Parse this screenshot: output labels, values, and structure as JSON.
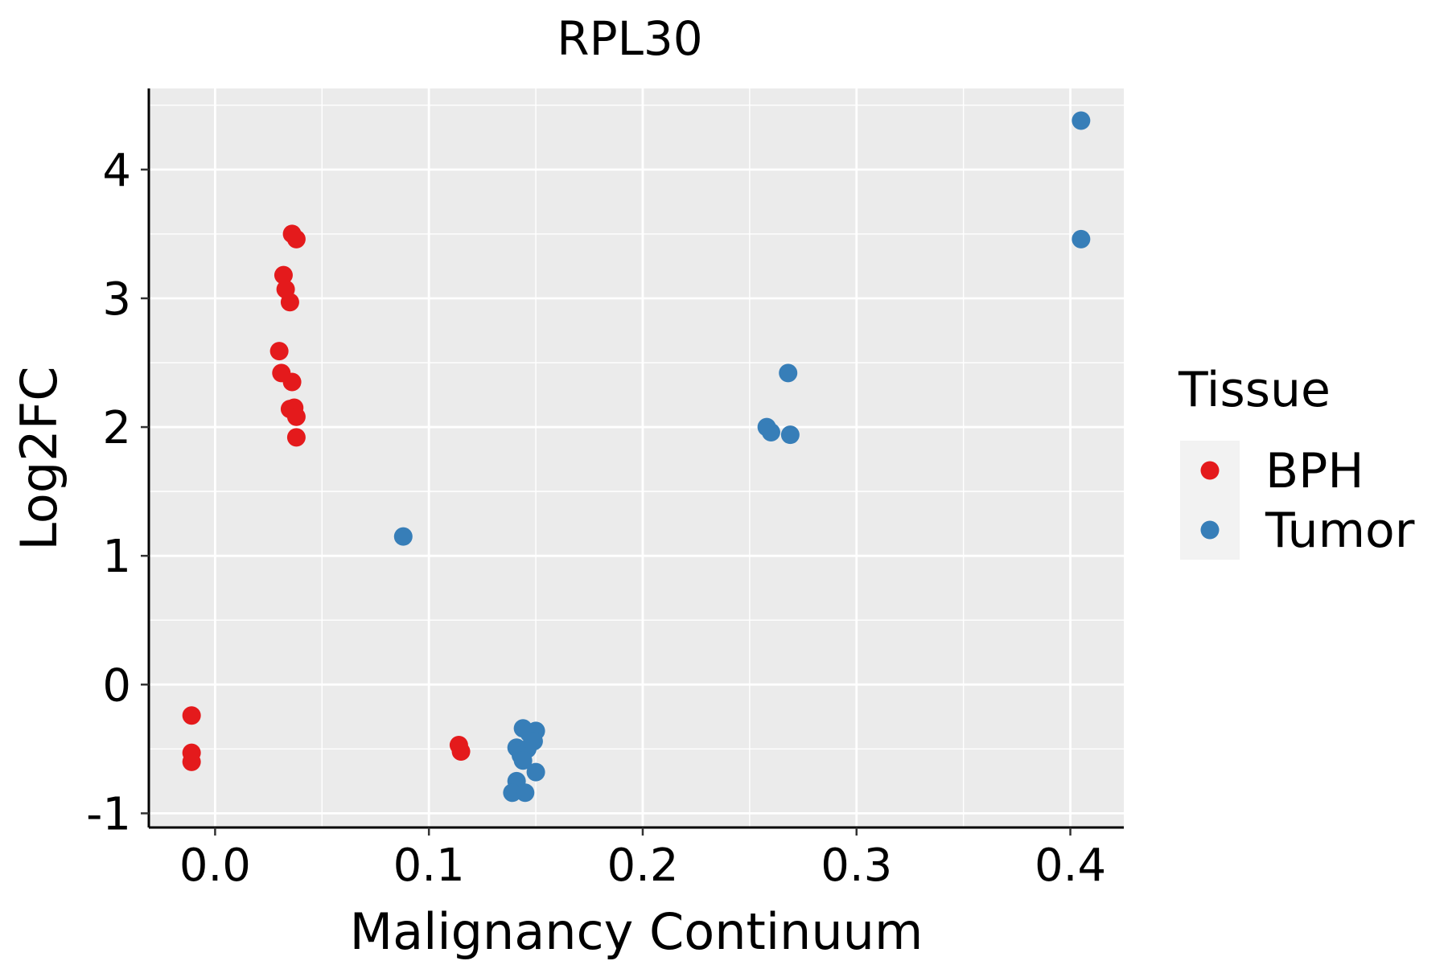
{
  "chart_data": {
    "type": "scatter",
    "title": "RPL30",
    "xlabel": "Malignancy Continuum",
    "ylabel": "Log2FC",
    "xlim": [
      -0.031,
      0.425
    ],
    "ylim": [
      -1.11,
      4.63
    ],
    "x_ticks": [
      0.0,
      0.1,
      0.2,
      0.3,
      0.4
    ],
    "x_tick_labels": [
      "0.0",
      "0.1",
      "0.2",
      "0.3",
      "0.4"
    ],
    "y_ticks": [
      -1,
      0,
      1,
      2,
      3,
      4
    ],
    "y_tick_labels": [
      "-1",
      "0",
      "1",
      "2",
      "3",
      "4"
    ],
    "grid": true,
    "legend": {
      "title": "Tissue",
      "placement": "right",
      "entries": [
        "BPH",
        "Tumor"
      ]
    },
    "series": [
      {
        "name": "BPH",
        "color": "#e41a1c",
        "points": [
          {
            "x": -0.011,
            "y": -0.24
          },
          {
            "x": -0.011,
            "y": -0.53
          },
          {
            "x": -0.011,
            "y": -0.6
          },
          {
            "x": 0.036,
            "y": 3.5
          },
          {
            "x": 0.038,
            "y": 3.46
          },
          {
            "x": 0.032,
            "y": 3.18
          },
          {
            "x": 0.033,
            "y": 3.07
          },
          {
            "x": 0.035,
            "y": 2.97
          },
          {
            "x": 0.03,
            "y": 2.59
          },
          {
            "x": 0.031,
            "y": 2.42
          },
          {
            "x": 0.036,
            "y": 2.35
          },
          {
            "x": 0.035,
            "y": 2.14
          },
          {
            "x": 0.037,
            "y": 2.15
          },
          {
            "x": 0.038,
            "y": 2.08
          },
          {
            "x": 0.038,
            "y": 1.92
          },
          {
            "x": 0.114,
            "y": -0.47
          },
          {
            "x": 0.115,
            "y": -0.52
          }
        ]
      },
      {
        "name": "Tumor",
        "color": "#377eb8",
        "points": [
          {
            "x": 0.405,
            "y": 4.38
          },
          {
            "x": 0.405,
            "y": 3.46
          },
          {
            "x": 0.268,
            "y": 2.42
          },
          {
            "x": 0.258,
            "y": 2.0
          },
          {
            "x": 0.26,
            "y": 1.96
          },
          {
            "x": 0.269,
            "y": 1.94
          },
          {
            "x": 0.088,
            "y": 1.15
          },
          {
            "x": 0.144,
            "y": -0.34
          },
          {
            "x": 0.15,
            "y": -0.36
          },
          {
            "x": 0.147,
            "y": -0.38
          },
          {
            "x": 0.149,
            "y": -0.44
          },
          {
            "x": 0.141,
            "y": -0.49
          },
          {
            "x": 0.146,
            "y": -0.5
          },
          {
            "x": 0.143,
            "y": -0.55
          },
          {
            "x": 0.144,
            "y": -0.59
          },
          {
            "x": 0.15,
            "y": -0.68
          },
          {
            "x": 0.141,
            "y": -0.75
          },
          {
            "x": 0.139,
            "y": -0.84
          },
          {
            "x": 0.145,
            "y": -0.84
          }
        ]
      }
    ]
  }
}
